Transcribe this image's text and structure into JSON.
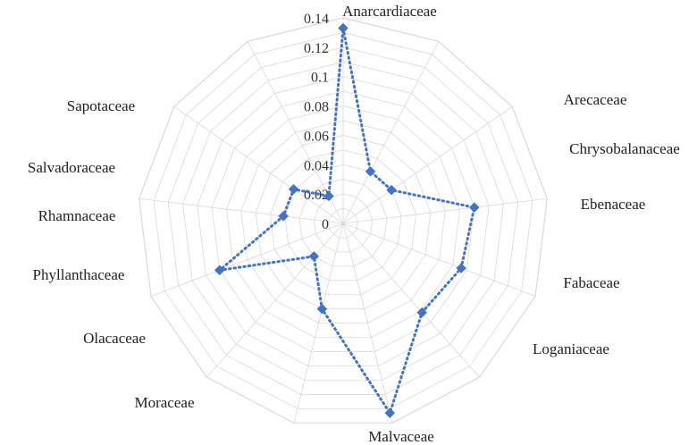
{
  "chart_data": {
    "type": "radar",
    "categories": [
      "Anarcardiaceae",
      "Arecaceae",
      "Chrysobalanaceae",
      "Ebenaceae",
      "Fabaceae",
      "Loganiaceae",
      "Malvaceae",
      "Moraceae",
      "Olacaceae",
      "Phyllanthaceae",
      "Rhamnaceae",
      "Salvadoraceae",
      "Sapotaceae"
    ],
    "series": [
      {
        "values": [
          0.133,
          0.04,
          0.04,
          0.09,
          0.086,
          0.081,
          0.133,
          0.06,
          0.03,
          0.09,
          0.041,
          0.041,
          0.021
        ]
      }
    ],
    "r_ticks": [
      "0",
      "0.02",
      "0.04",
      "0.06",
      "0.08",
      "0.1",
      "0.12",
      "0.14"
    ],
    "r_range": [
      0,
      0.14
    ],
    "r_grid_step": 0.01,
    "grid": true,
    "legend": "none",
    "line_style": "dotted",
    "marker": "diamond",
    "colors": {
      "series": "#4472C4",
      "grid": "#d9d9d9"
    }
  }
}
